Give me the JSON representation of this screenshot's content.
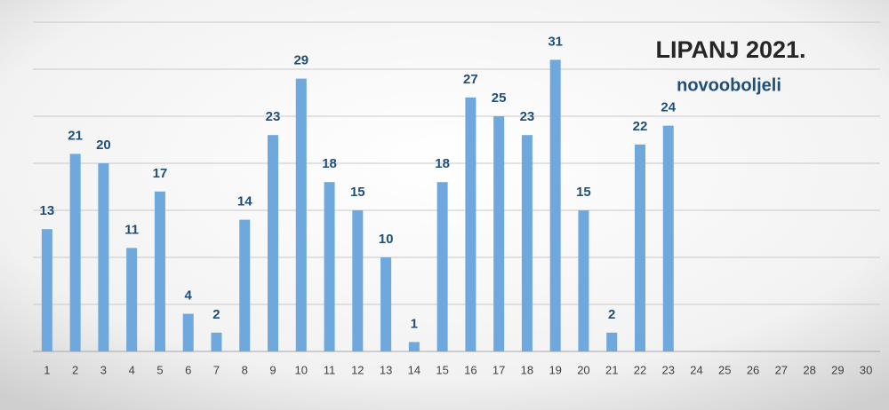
{
  "chart_data": {
    "type": "bar",
    "title": "LIPANJ 2021.",
    "subtitle": "novooboljeli",
    "categories": [
      "1",
      "2",
      "3",
      "4",
      "5",
      "6",
      "7",
      "8",
      "9",
      "10",
      "11",
      "12",
      "13",
      "14",
      "15",
      "16",
      "17",
      "18",
      "19",
      "20",
      "21",
      "22",
      "23",
      "24",
      "25",
      "26",
      "27",
      "28",
      "29",
      "30"
    ],
    "values": [
      13,
      21,
      20,
      11,
      17,
      4,
      2,
      14,
      23,
      29,
      18,
      15,
      10,
      1,
      18,
      27,
      25,
      23,
      31,
      15,
      2,
      22,
      24,
      null,
      null,
      null,
      null,
      null,
      null,
      null
    ],
    "color": "#6fa8dc",
    "label_color": "#1f4e79",
    "ylim": [
      0,
      35
    ],
    "yticks": [
      0,
      5,
      10,
      15,
      20,
      25,
      30,
      35
    ],
    "show_ytick_labels": false,
    "grid": true
  }
}
